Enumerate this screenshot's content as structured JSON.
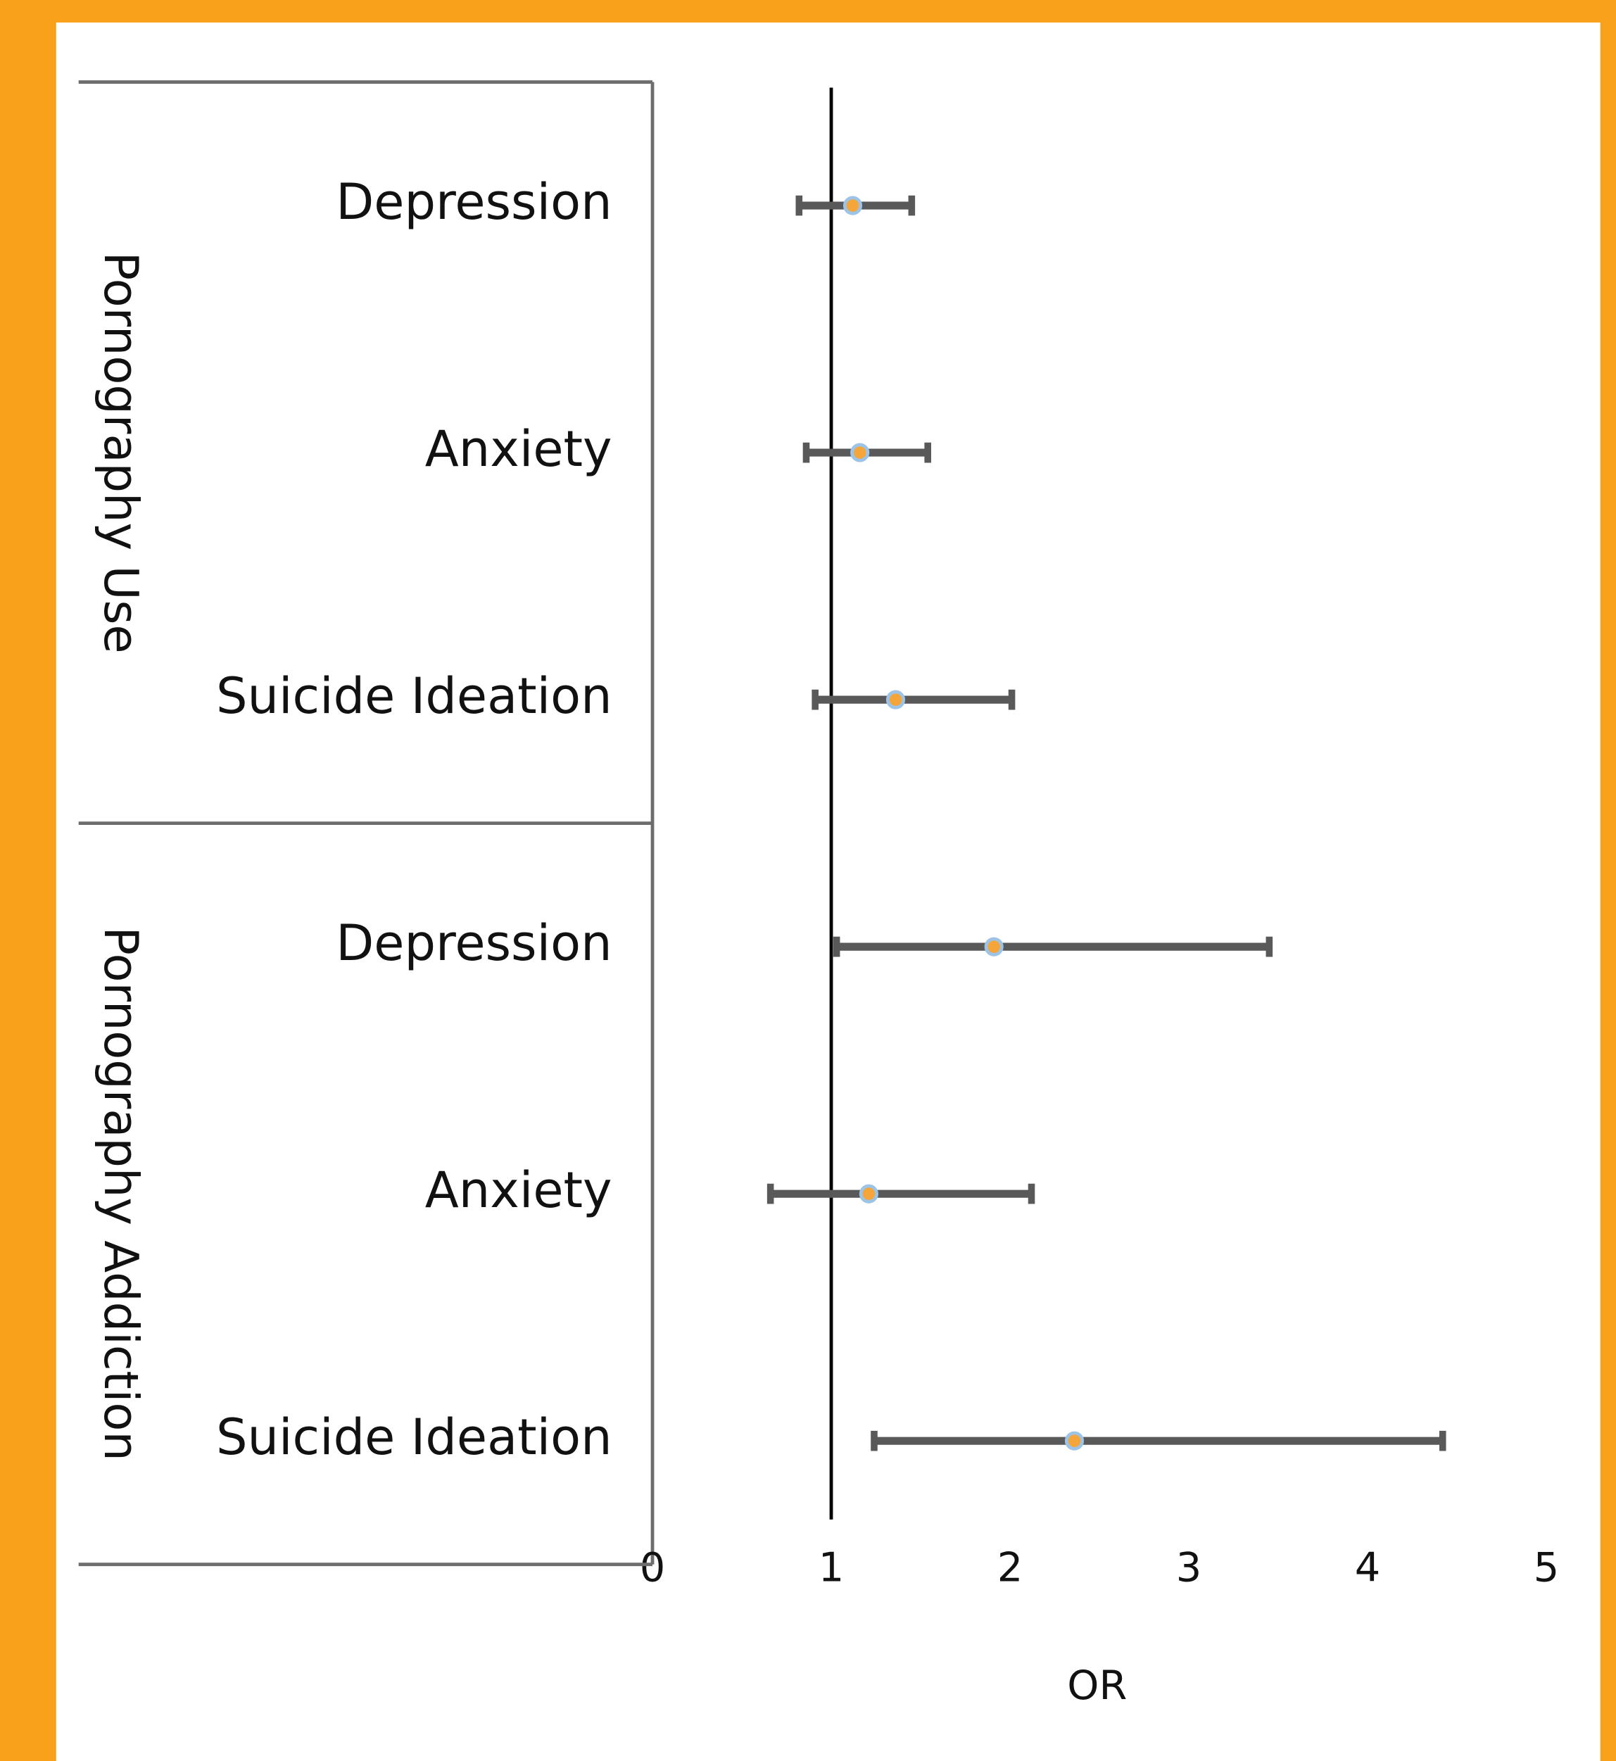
{
  "chart_data": {
    "type": "forest",
    "groups": [
      {
        "name": "Pornography Use",
        "categories": [
          "Depression",
          "Anxiety",
          "Suicide Ideation"
        ],
        "values": [
          1.12,
          1.16,
          1.36
        ],
        "lower": [
          0.82,
          0.86,
          0.91
        ],
        "upper": [
          1.45,
          1.54,
          2.01
        ]
      },
      {
        "name": "Pornography Addiction",
        "categories": [
          "Depression",
          "Anxiety",
          "Suicide Ideation"
        ],
        "values": [
          1.91,
          1.21,
          2.36
        ],
        "lower": [
          1.03,
          0.66,
          1.24
        ],
        "upper": [
          3.45,
          2.12,
          4.42
        ]
      }
    ],
    "xlabel": "OR",
    "xlim": [
      0,
      5
    ],
    "xticks": [
      0,
      1,
      2,
      3,
      4,
      5
    ],
    "reference_line": 1,
    "color": "#595959",
    "marker_color": "#f4a63a",
    "marker_edge": "#9dc3e6"
  }
}
